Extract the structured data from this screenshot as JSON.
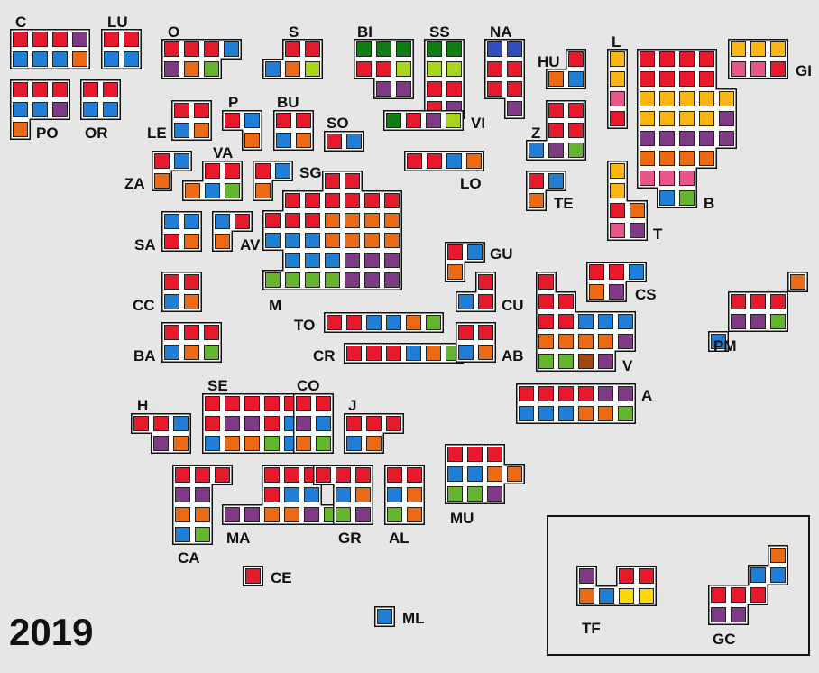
{
  "year": "2019",
  "colors": {
    "R": "#e8192c",
    "B": "#1f7fd6",
    "O": "#ec6b12",
    "P": "#7e3a85",
    "G": "#64b42e",
    "DG": "#0f7d12",
    "LG": "#a8d61e",
    "Y": "#fbb514",
    "PK": "#e8558a",
    "DB": "#2f4fc0",
    "BR": "#a64510",
    "YL": "#ffd800"
  },
  "provinces": [
    {
      "name": "C",
      "cells": [
        [
          "R",
          "R",
          "R",
          "P"
        ],
        [
          "B",
          "B",
          "B",
          "O"
        ]
      ]
    },
    {
      "name": "LU",
      "cells": [
        [
          "R",
          "R"
        ],
        [
          "B",
          "B"
        ]
      ]
    },
    {
      "name": "O",
      "cells": [
        [
          "R",
          "R",
          "R",
          "B"
        ],
        [
          "P",
          "O",
          "G",
          ""
        ]
      ]
    },
    {
      "name": "S",
      "cells": [
        [
          "",
          "R",
          "R"
        ],
        [
          "B",
          "O",
          "LG"
        ]
      ]
    },
    {
      "name": "BI",
      "cells": [
        [
          "DG",
          "DG",
          "DG"
        ],
        [
          "R",
          "R",
          "LG"
        ],
        [
          "",
          "P",
          "P"
        ]
      ]
    },
    {
      "name": "SS",
      "cells": [
        [
          "DG",
          "DG"
        ],
        [
          "LG",
          "LG"
        ],
        [
          "R",
          "R"
        ],
        [
          "R",
          "P"
        ]
      ]
    },
    {
      "name": "NA",
      "cells": [
        [
          "DB",
          "DB"
        ],
        [
          "R",
          "R"
        ],
        [
          "R",
          "R"
        ],
        [
          "",
          "P"
        ]
      ]
    },
    {
      "name": "HU",
      "cells": [
        [
          "",
          "R"
        ],
        [
          "O",
          "B"
        ]
      ]
    },
    {
      "name": "L",
      "cells": [
        [
          "Y"
        ],
        [
          "Y"
        ],
        [
          "PK"
        ],
        [
          "R"
        ]
      ]
    },
    {
      "name": "GI",
      "cells": [
        [
          "Y",
          "Y",
          "Y"
        ],
        [
          "PK",
          "PK",
          "R"
        ]
      ]
    },
    {
      "name": "B",
      "cells": [
        [
          "R",
          "R",
          "R",
          "R",
          ""
        ],
        [
          "R",
          "R",
          "R",
          "R",
          ""
        ],
        [
          "Y",
          "Y",
          "Y",
          "Y",
          "Y"
        ],
        [
          "Y",
          "Y",
          "Y",
          "Y",
          "P"
        ],
        [
          "P",
          "P",
          "P",
          "P",
          "P"
        ],
        [
          "O",
          "O",
          "O",
          "O",
          ""
        ],
        [
          "PK",
          "PK",
          "PK",
          "",
          ""
        ],
        [
          "",
          "B",
          "G",
          "",
          ""
        ]
      ]
    },
    {
      "name": "PO",
      "cells": [
        [
          "R",
          "R",
          "R"
        ],
        [
          "B",
          "B",
          "P"
        ],
        [
          "O",
          "",
          ""
        ]
      ]
    },
    {
      "name": "OR",
      "cells": [
        [
          "R",
          "R"
        ],
        [
          "B",
          "B"
        ]
      ]
    },
    {
      "name": "LE",
      "cells": [
        [
          "R",
          "R"
        ],
        [
          "B",
          "O"
        ]
      ]
    },
    {
      "name": "P",
      "cells": [
        [
          "R",
          "B"
        ],
        [
          "",
          "O"
        ]
      ]
    },
    {
      "name": "BU",
      "cells": [
        [
          "R",
          "R"
        ],
        [
          "B",
          "O"
        ]
      ]
    },
    {
      "name": "SO",
      "cells": [
        [
          "R",
          "B"
        ]
      ]
    },
    {
      "name": "VI",
      "cells": [
        [
          "DG",
          "R",
          "P",
          "LG"
        ]
      ]
    },
    {
      "name": "Z",
      "cells": [
        [
          "",
          "R",
          "R"
        ],
        [
          "",
          "R",
          "R"
        ],
        [
          "B",
          "P",
          "G"
        ]
      ]
    },
    {
      "name": "VA",
      "cells": [
        [
          "",
          "R",
          "R"
        ],
        [
          "O",
          "B",
          "G"
        ]
      ]
    },
    {
      "name": "ZA",
      "cells": [
        [
          "R",
          "B"
        ],
        [
          "O",
          ""
        ]
      ]
    },
    {
      "name": "SG",
      "cells": [
        [
          "R",
          "B"
        ],
        [
          "O",
          ""
        ]
      ]
    },
    {
      "name": "LO",
      "cells": [
        [
          "R",
          "R",
          "B",
          "O"
        ]
      ]
    },
    {
      "name": "TE",
      "cells": [
        [
          "R",
          "B"
        ],
        [
          "O",
          ""
        ]
      ]
    },
    {
      "name": "T",
      "cells": [
        [
          "Y",
          ""
        ],
        [
          "Y",
          ""
        ],
        [
          "R",
          "O"
        ],
        [
          "PK",
          "P"
        ]
      ]
    },
    {
      "name": "M",
      "cells": [
        [
          "",
          "",
          "",
          "R",
          "R",
          "",
          ""
        ],
        [
          "",
          "R",
          "R",
          "R",
          "R",
          "R",
          "R"
        ],
        [
          "R",
          "R",
          "R",
          "O",
          "O",
          "O",
          "O"
        ],
        [
          "B",
          "B",
          "B",
          "O",
          "O",
          "O",
          "O"
        ],
        [
          "",
          "B",
          "B",
          "B",
          "P",
          "P",
          "P"
        ],
        [
          "G",
          "G",
          "G",
          "G",
          "P",
          "P",
          "P"
        ]
      ]
    },
    {
      "name": "SA",
      "cells": [
        [
          "B",
          "B"
        ],
        [
          "R",
          "O"
        ]
      ]
    },
    {
      "name": "AV",
      "cells": [
        [
          "B",
          "R"
        ],
        [
          "O",
          ""
        ]
      ]
    },
    {
      "name": "GU",
      "cells": [
        [
          "R",
          "B"
        ],
        [
          "O",
          ""
        ]
      ]
    },
    {
      "name": "CS",
      "cells": [
        [
          "R",
          "R",
          "B"
        ],
        [
          "O",
          "P",
          ""
        ]
      ]
    },
    {
      "name": "CU",
      "cells": [
        [
          "",
          "R"
        ],
        [
          "B",
          "R"
        ]
      ]
    },
    {
      "name": "CC",
      "cells": [
        [
          "R",
          "R"
        ],
        [
          "B",
          "O"
        ]
      ]
    },
    {
      "name": "TO",
      "cells": [
        [
          "R",
          "R",
          "B",
          "B",
          "O",
          "G"
        ]
      ]
    },
    {
      "name": "PM",
      "cells": [
        [
          "",
          "",
          "",
          "",
          "O"
        ],
        [
          "",
          "R",
          "R",
          "R",
          ""
        ],
        [
          "",
          "P",
          "P",
          "G",
          ""
        ],
        [
          "B",
          "",
          "",
          "",
          ""
        ]
      ]
    },
    {
      "name": "V",
      "cells": [
        [
          "R",
          "",
          "",
          "",
          ""
        ],
        [
          "R",
          "R",
          "",
          "",
          ""
        ],
        [
          "R",
          "R",
          "B",
          "B",
          "B"
        ],
        [
          "O",
          "O",
          "O",
          "O",
          "P"
        ],
        [
          "G",
          "G",
          "BR",
          "P",
          ""
        ]
      ]
    },
    {
      "name": "BA",
      "cells": [
        [
          "R",
          "R",
          "R"
        ],
        [
          "B",
          "O",
          "G"
        ]
      ]
    },
    {
      "name": "CR",
      "cells": [
        [
          "R",
          "R",
          "R",
          "B",
          "O",
          "G"
        ]
      ]
    },
    {
      "name": "AB",
      "cells": [
        [
          "R",
          "R"
        ],
        [
          "B",
          "O"
        ]
      ]
    },
    {
      "name": "A",
      "cells": [
        [
          "R",
          "R",
          "R",
          "R",
          "P",
          "P"
        ],
        [
          "B",
          "B",
          "B",
          "O",
          "O",
          "G"
        ]
      ]
    },
    {
      "name": "H",
      "cells": [
        [
          "R",
          "R",
          "B"
        ],
        [
          "",
          "P",
          "O"
        ]
      ]
    },
    {
      "name": "SE",
      "cells": [
        [
          "R",
          "R",
          "R",
          "R",
          "R"
        ],
        [
          "R",
          "P",
          "P",
          "R",
          "B"
        ],
        [
          "B",
          "O",
          "O",
          "G",
          "B"
        ]
      ]
    },
    {
      "name": "CO",
      "cells": [
        [
          "R",
          "R"
        ],
        [
          "P",
          "B"
        ],
        [
          "O",
          "G"
        ]
      ]
    },
    {
      "name": "J",
      "cells": [
        [
          "R",
          "R",
          "R"
        ],
        [
          "B",
          "O",
          ""
        ]
      ]
    },
    {
      "name": "MU",
      "cells": [
        [
          "R",
          "R",
          "R",
          ""
        ],
        [
          "B",
          "B",
          "O",
          "O"
        ],
        [
          "G",
          "G",
          "P",
          ""
        ]
      ]
    },
    {
      "name": "CA",
      "cells": [
        [
          "R",
          "R",
          "R"
        ],
        [
          "P",
          "P",
          ""
        ],
        [
          "O",
          "O",
          ""
        ],
        [
          "B",
          "G",
          ""
        ]
      ]
    },
    {
      "name": "MA",
      "cells": [
        [
          "",
          "",
          "R",
          "R",
          "R",
          ""
        ],
        [
          "",
          "",
          "R",
          "B",
          "B",
          ""
        ],
        [
          "P",
          "P",
          "O",
          "O",
          "P",
          "G"
        ]
      ]
    },
    {
      "name": "GR",
      "cells": [
        [
          "R",
          "R",
          "R"
        ],
        [
          "",
          "B",
          "O"
        ],
        [
          "",
          "G",
          "P"
        ]
      ]
    },
    {
      "name": "AL",
      "cells": [
        [
          "R",
          "R"
        ],
        [
          "B",
          "O"
        ],
        [
          "G",
          "O"
        ]
      ]
    },
    {
      "name": "CE",
      "cells": [
        [
          "R"
        ]
      ]
    },
    {
      "name": "ML",
      "cells": [
        [
          "B"
        ]
      ]
    },
    {
      "name": "TF",
      "cells": [
        [
          "P",
          "",
          "R",
          "R"
        ],
        [
          "O",
          "B",
          "YL",
          "YL"
        ]
      ]
    },
    {
      "name": "GC",
      "cells": [
        [
          "",
          "",
          "",
          "O"
        ],
        [
          "",
          "",
          "B",
          "B"
        ],
        [
          "R",
          "R",
          "R",
          ""
        ],
        [
          "P",
          "P",
          "",
          ""
        ]
      ]
    }
  ]
}
